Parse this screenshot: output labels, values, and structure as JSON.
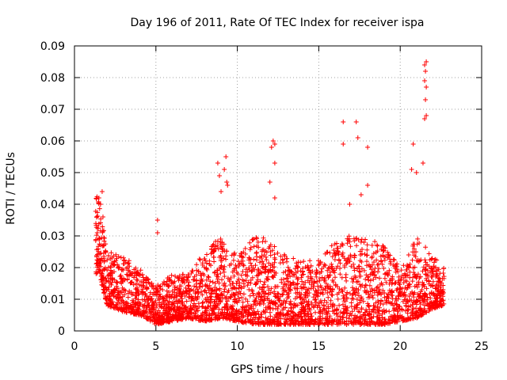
{
  "chart_data": {
    "type": "scatter",
    "title": "Day 196 of 2011, Rate Of TEC Index for receiver ispa",
    "xlabel": "GPS time / hours",
    "ylabel": "ROTI / TECUs",
    "xlim": [
      0,
      25
    ],
    "ylim": [
      0,
      0.09
    ],
    "x_ticks": [
      0,
      5,
      10,
      15,
      20,
      25
    ],
    "x_tick_labels": [
      "0",
      "5",
      "10",
      "15",
      "20",
      "25"
    ],
    "y_ticks": [
      0,
      0.01,
      0.02,
      0.03,
      0.04,
      0.05,
      0.06,
      0.07,
      0.08,
      0.09
    ],
    "y_tick_labels": [
      "0",
      "0.01",
      "0.02",
      "0.03",
      "0.04",
      "0.05",
      "0.06",
      "0.07",
      "0.08",
      "0.09"
    ],
    "grid": true,
    "marker": "+",
    "colors": {
      "points": "#ff0000",
      "grid": "#a0a0a0",
      "axis": "#000000"
    },
    "series": [
      {
        "x_range": [
          1.3,
          22.7
        ],
        "density_profile": [
          {
            "x": 1.5,
            "low": 0.018,
            "high": 0.043
          },
          {
            "x": 2.0,
            "low": 0.008,
            "high": 0.025
          },
          {
            "x": 3.0,
            "low": 0.006,
            "high": 0.024
          },
          {
            "x": 4.0,
            "low": 0.005,
            "high": 0.02
          },
          {
            "x": 5.0,
            "low": 0.002,
            "high": 0.014
          },
          {
            "x": 6.0,
            "low": 0.003,
            "high": 0.018
          },
          {
            "x": 7.0,
            "low": 0.004,
            "high": 0.018
          },
          {
            "x": 8.0,
            "low": 0.003,
            "high": 0.025
          },
          {
            "x": 9.0,
            "low": 0.004,
            "high": 0.03
          },
          {
            "x": 10.0,
            "low": 0.003,
            "high": 0.024
          },
          {
            "x": 11.0,
            "low": 0.002,
            "high": 0.03
          },
          {
            "x": 12.0,
            "low": 0.002,
            "high": 0.029
          },
          {
            "x": 13.0,
            "low": 0.002,
            "high": 0.024
          },
          {
            "x": 14.0,
            "low": 0.002,
            "high": 0.022
          },
          {
            "x": 15.0,
            "low": 0.002,
            "high": 0.023
          },
          {
            "x": 16.0,
            "low": 0.002,
            "high": 0.028
          },
          {
            "x": 17.0,
            "low": 0.002,
            "high": 0.031
          },
          {
            "x": 18.0,
            "low": 0.002,
            "high": 0.03
          },
          {
            "x": 19.0,
            "low": 0.002,
            "high": 0.027
          },
          {
            "x": 20.0,
            "low": 0.003,
            "high": 0.02
          },
          {
            "x": 21.0,
            "low": 0.004,
            "high": 0.03
          },
          {
            "x": 22.0,
            "low": 0.007,
            "high": 0.024
          },
          {
            "x": 22.6,
            "low": 0.008,
            "high": 0.02
          }
        ],
        "outliers": [
          [
            1.5,
            0.042
          ],
          [
            1.6,
            0.04
          ],
          [
            1.7,
            0.044
          ],
          [
            1.75,
            0.036
          ],
          [
            1.4,
            0.031
          ],
          [
            5.1,
            0.035
          ],
          [
            5.1,
            0.031
          ],
          [
            8.8,
            0.053
          ],
          [
            8.9,
            0.049
          ],
          [
            9.0,
            0.044
          ],
          [
            9.2,
            0.051
          ],
          [
            9.3,
            0.055
          ],
          [
            9.35,
            0.047
          ],
          [
            9.4,
            0.046
          ],
          [
            12.0,
            0.047
          ],
          [
            12.1,
            0.058
          ],
          [
            12.2,
            0.06
          ],
          [
            12.3,
            0.059
          ],
          [
            12.3,
            0.053
          ],
          [
            12.3,
            0.042
          ],
          [
            16.5,
            0.066
          ],
          [
            16.5,
            0.059
          ],
          [
            16.9,
            0.04
          ],
          [
            17.3,
            0.066
          ],
          [
            17.4,
            0.061
          ],
          [
            17.6,
            0.043
          ],
          [
            18.0,
            0.058
          ],
          [
            18.0,
            0.046
          ],
          [
            20.8,
            0.059
          ],
          [
            20.7,
            0.051
          ],
          [
            21.0,
            0.05
          ],
          [
            21.4,
            0.053
          ],
          [
            21.5,
            0.084
          ],
          [
            21.55,
            0.082
          ],
          [
            21.6,
            0.085
          ],
          [
            21.5,
            0.079
          ],
          [
            21.6,
            0.077
          ],
          [
            21.55,
            0.073
          ],
          [
            21.6,
            0.068
          ],
          [
            21.5,
            0.067
          ]
        ]
      }
    ]
  }
}
